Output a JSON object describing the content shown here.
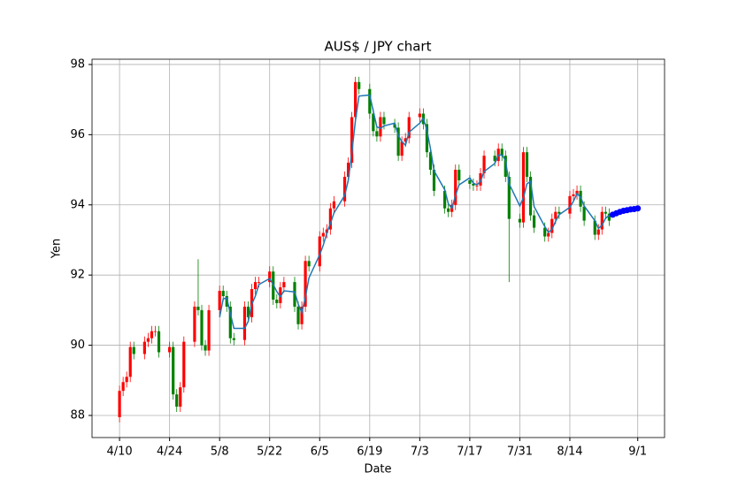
{
  "chart_data": {
    "type": "candlestick",
    "title": "AUS$ / JPY chart",
    "xlabel": "Date",
    "ylabel": "Yen",
    "x": [
      0,
      1,
      2,
      3,
      4,
      7,
      8,
      9,
      10,
      11,
      14,
      15,
      16,
      17,
      18,
      21,
      22,
      23,
      24,
      25,
      28,
      29,
      30,
      31,
      32,
      35,
      36,
      37,
      38,
      39,
      42,
      43,
      44,
      45,
      46,
      49,
      50,
      51,
      52,
      53,
      56,
      57,
      58,
      59,
      60,
      63,
      64,
      65,
      66,
      67,
      70,
      71,
      72,
      73,
      74,
      77,
      78,
      79,
      80,
      81,
      84,
      85,
      86,
      87,
      88,
      91,
      92,
      93,
      94,
      95,
      98,
      99,
      100,
      101,
      102,
      105,
      106,
      107,
      108,
      109,
      112,
      113,
      114,
      115,
      116,
      119,
      120,
      121,
      122,
      123,
      126,
      127,
      128,
      129,
      130,
      133,
      134,
      135,
      136,
      137
    ],
    "open": [
      87.95,
      88.7,
      88.95,
      89.1,
      89.95,
      89.75,
      90.1,
      90.2,
      90.4,
      90.4,
      89.8,
      89.95,
      88.6,
      88.25,
      88.8,
      90.1,
      91.1,
      91.0,
      90.0,
      89.85,
      91.0,
      91.55,
      91.4,
      91.1,
      90.2,
      90.15,
      91.1,
      90.8,
      91.6,
      91.8,
      91.8,
      92.1,
      91.3,
      91.2,
      91.65,
      91.8,
      91.1,
      90.6,
      91.1,
      92.4,
      92.25,
      93.1,
      93.2,
      93.3,
      93.9,
      94.1,
      94.8,
      95.2,
      96.5,
      97.5,
      97.3,
      96.6,
      96.1,
      95.95,
      96.5,
      96.3,
      96.2,
      95.4,
      95.8,
      95.9,
      96.5,
      96.6,
      96.3,
      95.5,
      95.0,
      94.4,
      93.9,
      93.8,
      94.0,
      95.0,
      94.7,
      94.6,
      94.55,
      94.55,
      94.9,
      95.4,
      95.25,
      95.6,
      95.4,
      94.8,
      93.6,
      93.5,
      95.5,
      94.8,
      93.7,
      93.35,
      93.1,
      93.2,
      93.6,
      93.8,
      93.75,
      94.25,
      94.3,
      94.4,
      93.95,
      93.55,
      93.15,
      93.3,
      93.8,
      93.75
    ],
    "high": [
      88.85,
      89.1,
      89.25,
      90.1,
      90.1,
      90.25,
      90.35,
      90.55,
      90.55,
      90.55,
      90.1,
      90.1,
      88.75,
      88.95,
      90.25,
      91.25,
      92.45,
      91.15,
      90.15,
      91.15,
      91.7,
      91.7,
      91.55,
      91.25,
      90.35,
      91.25,
      91.25,
      91.75,
      91.95,
      91.95,
      92.25,
      92.25,
      91.45,
      91.8,
      91.95,
      91.95,
      91.25,
      91.25,
      92.55,
      92.55,
      93.25,
      93.35,
      93.45,
      94.05,
      94.25,
      94.95,
      95.35,
      96.65,
      97.65,
      97.65,
      97.45,
      96.75,
      96.25,
      96.65,
      96.65,
      96.45,
      96.35,
      95.95,
      96.05,
      96.65,
      96.75,
      96.75,
      96.45,
      95.65,
      95.15,
      94.55,
      94.05,
      94.15,
      95.15,
      95.15,
      94.85,
      94.75,
      94.7,
      95.05,
      95.55,
      95.55,
      95.75,
      95.75,
      95.55,
      94.95,
      93.75,
      95.65,
      95.65,
      94.95,
      93.85,
      93.5,
      93.35,
      93.75,
      93.95,
      93.95,
      94.4,
      94.45,
      94.55,
      94.55,
      94.1,
      93.7,
      93.45,
      93.95,
      93.95,
      93.9
    ],
    "low": [
      87.8,
      88.55,
      88.8,
      88.95,
      89.6,
      89.6,
      89.95,
      90.05,
      90.25,
      89.65,
      89.65,
      88.45,
      88.1,
      88.1,
      88.65,
      89.95,
      90.85,
      89.85,
      89.7,
      89.7,
      90.85,
      91.25,
      90.95,
      90.05,
      90.0,
      90.0,
      90.65,
      90.65,
      91.45,
      91.65,
      91.65,
      91.15,
      91.05,
      91.05,
      91.5,
      90.95,
      90.45,
      90.45,
      90.95,
      92.1,
      92.1,
      92.95,
      93.05,
      93.15,
      93.75,
      93.95,
      94.65,
      95.05,
      96.35,
      97.15,
      96.45,
      95.95,
      95.8,
      95.8,
      96.15,
      96.05,
      95.25,
      95.25,
      95.65,
      95.75,
      96.35,
      96.15,
      95.35,
      94.85,
      94.25,
      93.75,
      93.65,
      93.65,
      93.85,
      94.55,
      94.45,
      94.4,
      94.4,
      94.4,
      94.75,
      95.1,
      95.1,
      95.25,
      94.65,
      91.8,
      93.35,
      93.35,
      94.65,
      93.55,
      93.2,
      92.95,
      92.95,
      93.05,
      93.45,
      93.6,
      93.6,
      94.1,
      94.15,
      93.8,
      93.4,
      93.0,
      93.0,
      93.15,
      93.6,
      93.4
    ],
    "close": [
      88.7,
      88.95,
      89.1,
      89.95,
      89.75,
      90.1,
      90.2,
      90.4,
      90.4,
      89.8,
      89.95,
      88.6,
      88.25,
      88.8,
      90.1,
      91.1,
      91.0,
      90.0,
      89.85,
      91.0,
      91.55,
      91.4,
      91.1,
      90.2,
      90.15,
      91.1,
      90.8,
      91.6,
      91.8,
      91.8,
      92.1,
      91.3,
      91.2,
      91.65,
      91.8,
      91.1,
      90.6,
      91.1,
      92.4,
      92.25,
      93.1,
      93.2,
      93.3,
      93.9,
      94.1,
      94.8,
      95.2,
      96.5,
      97.5,
      97.3,
      96.6,
      96.1,
      95.95,
      96.5,
      96.3,
      96.2,
      95.4,
      95.8,
      95.9,
      96.5,
      96.6,
      96.3,
      95.5,
      95.0,
      94.4,
      93.9,
      93.8,
      94.0,
      95.0,
      94.7,
      94.6,
      94.55,
      94.55,
      94.9,
      95.4,
      95.25,
      95.6,
      95.4,
      94.8,
      93.6,
      93.5,
      95.5,
      94.8,
      93.7,
      93.35,
      93.1,
      93.2,
      93.6,
      93.8,
      93.75,
      94.25,
      94.3,
      94.4,
      93.95,
      93.55,
      93.15,
      93.3,
      93.8,
      93.75,
      93.55
    ],
    "up_color": "#ff0000",
    "down_color": "#008000",
    "moving_average": {
      "color": "#1f77b4",
      "values": [
        null,
        null,
        null,
        null,
        null,
        null,
        null,
        null,
        null,
        null,
        null,
        null,
        null,
        null,
        null,
        null,
        null,
        null,
        null,
        null,
        90.8,
        91.32,
        91.35,
        90.9,
        90.48,
        90.48,
        90.68,
        91.17,
        91.4,
        91.73,
        91.9,
        91.73,
        91.53,
        91.38,
        91.55,
        91.52,
        91.17,
        90.93,
        91.37,
        91.92,
        92.58,
        92.85,
        93.2,
        93.47,
        93.77,
        94.27,
        94.7,
        95.5,
        96.4,
        97.1,
        97.13,
        96.67,
        96.22,
        96.18,
        96.25,
        96.33,
        95.97,
        95.8,
        95.7,
        96.07,
        96.33,
        96.47,
        96.13,
        95.6,
        94.97,
        94.43,
        94.03,
        93.9,
        94.27,
        94.57,
        94.77,
        94.62,
        94.57,
        94.67,
        94.95,
        95.18,
        95.42,
        95.42,
        95.27,
        94.6,
        93.97,
        94.2,
        94.6,
        94.67,
        93.95,
        93.38,
        93.22,
        93.3,
        93.53,
        93.72,
        93.93,
        94.1,
        94.32,
        94.22,
        93.97,
        93.55,
        93.33,
        93.42,
        93.62,
        93.7
      ]
    },
    "forecast": {
      "color": "#0000ff",
      "x": [
        138,
        139,
        140,
        141,
        142,
        143,
        144,
        145
      ],
      "values": [
        93.72,
        93.76,
        93.8,
        93.83,
        93.85,
        93.87,
        93.88,
        93.9
      ]
    },
    "xlim": [
      -7.7,
      152.5
    ],
    "ylim": [
      87.37,
      98.15
    ],
    "xticks": [
      {
        "value": 0,
        "label": "4/10"
      },
      {
        "value": 14,
        "label": "4/24"
      },
      {
        "value": 28,
        "label": "5/8"
      },
      {
        "value": 42,
        "label": "5/22"
      },
      {
        "value": 56,
        "label": "6/5"
      },
      {
        "value": 70,
        "label": "6/19"
      },
      {
        "value": 84,
        "label": "7/3"
      },
      {
        "value": 98,
        "label": "7/17"
      },
      {
        "value": 112,
        "label": "7/31"
      },
      {
        "value": 126,
        "label": "8/14"
      },
      {
        "value": 145,
        "label": "9/1"
      }
    ],
    "yticks": [
      88,
      90,
      92,
      94,
      96,
      98
    ],
    "grid": true
  }
}
